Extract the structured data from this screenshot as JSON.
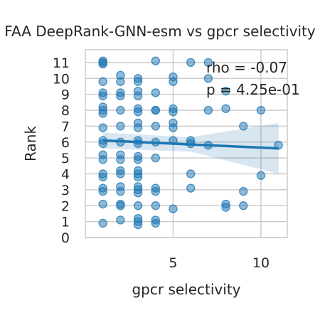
{
  "chart_data": {
    "type": "scatter",
    "title": "FAA DeepRank-GNN-esm vs gpcr selectivity",
    "xlabel": "gpcr selectivity",
    "ylabel": "Rank",
    "xlim": [
      0.0,
      11.5
    ],
    "ylim": [
      0,
      11.8
    ],
    "xticks": [
      5,
      10
    ],
    "yticks": [
      0,
      1,
      2,
      3,
      4,
      5,
      6,
      7,
      8,
      9,
      10,
      11
    ],
    "grid": true,
    "annotations": [
      "rho = -0.07",
      "p = 4.25e-01"
    ],
    "point_color": "#1f77b4",
    "line_color": "#1f77b4",
    "band_color": "#1f77b4",
    "regression": {
      "x": [
        1,
        11
      ],
      "y": [
        6.1,
        5.6
      ]
    },
    "ci_band": {
      "x": [
        1,
        6,
        11
      ],
      "lower": [
        5.6,
        5.4,
        4.0
      ],
      "upper": [
        6.6,
        6.3,
        7.2
      ]
    },
    "points": [
      {
        "x": 1,
        "y": 11.1
      },
      {
        "x": 1,
        "y": 10.9
      },
      {
        "x": 1,
        "y": 11.0
      },
      {
        "x": 1,
        "y": 9.8
      },
      {
        "x": 1,
        "y": 9.1
      },
      {
        "x": 1,
        "y": 8.9
      },
      {
        "x": 1,
        "y": 8.2
      },
      {
        "x": 1,
        "y": 8.0
      },
      {
        "x": 1,
        "y": 7.8
      },
      {
        "x": 1,
        "y": 6.9
      },
      {
        "x": 1,
        "y": 6.1
      },
      {
        "x": 1,
        "y": 5.9
      },
      {
        "x": 1,
        "y": 5.2
      },
      {
        "x": 1,
        "y": 4.9
      },
      {
        "x": 1,
        "y": 4.0
      },
      {
        "x": 1,
        "y": 3.8
      },
      {
        "x": 1,
        "y": 3.1
      },
      {
        "x": 1,
        "y": 2.9
      },
      {
        "x": 1,
        "y": 2.1
      },
      {
        "x": 1,
        "y": 0.9
      },
      {
        "x": 2,
        "y": 10.2
      },
      {
        "x": 2,
        "y": 9.8
      },
      {
        "x": 2,
        "y": 9.1
      },
      {
        "x": 2,
        "y": 8.9
      },
      {
        "x": 2,
        "y": 8.0
      },
      {
        "x": 2,
        "y": 7.0
      },
      {
        "x": 2,
        "y": 6.0
      },
      {
        "x": 2,
        "y": 5.2
      },
      {
        "x": 2,
        "y": 4.9
      },
      {
        "x": 2,
        "y": 4.2
      },
      {
        "x": 2,
        "y": 4.0
      },
      {
        "x": 2,
        "y": 3.2
      },
      {
        "x": 2,
        "y": 2.9
      },
      {
        "x": 2,
        "y": 2.1
      },
      {
        "x": 2,
        "y": 2.0
      },
      {
        "x": 2,
        "y": 1.1
      },
      {
        "x": 3,
        "y": 10.0
      },
      {
        "x": 3,
        "y": 9.8
      },
      {
        "x": 3,
        "y": 9.2
      },
      {
        "x": 3,
        "y": 8.9
      },
      {
        "x": 3,
        "y": 8.1
      },
      {
        "x": 3,
        "y": 7.9
      },
      {
        "x": 3,
        "y": 7.2
      },
      {
        "x": 3,
        "y": 6.9
      },
      {
        "x": 3,
        "y": 6.1
      },
      {
        "x": 3,
        "y": 5.9
      },
      {
        "x": 3,
        "y": 5.1
      },
      {
        "x": 3,
        "y": 4.9
      },
      {
        "x": 3,
        "y": 4.2
      },
      {
        "x": 3,
        "y": 4.0
      },
      {
        "x": 3,
        "y": 3.8
      },
      {
        "x": 3,
        "y": 3.2
      },
      {
        "x": 3,
        "y": 3.0
      },
      {
        "x": 3,
        "y": 2.8
      },
      {
        "x": 3,
        "y": 2.0
      },
      {
        "x": 3,
        "y": 1.2
      },
      {
        "x": 3,
        "y": 1.0
      },
      {
        "x": 3,
        "y": 0.8
      },
      {
        "x": 4,
        "y": 11.1
      },
      {
        "x": 4,
        "y": 9.1
      },
      {
        "x": 4,
        "y": 8.0
      },
      {
        "x": 4,
        "y": 8.0
      },
      {
        "x": 4,
        "y": 7.0
      },
      {
        "x": 4,
        "y": 6.0
      },
      {
        "x": 4,
        "y": 5.0
      },
      {
        "x": 4,
        "y": 3.1
      },
      {
        "x": 4,
        "y": 2.9
      },
      {
        "x": 4,
        "y": 2.0
      },
      {
        "x": 4,
        "y": 1.1
      },
      {
        "x": 4,
        "y": 0.9
      },
      {
        "x": 5,
        "y": 10.1
      },
      {
        "x": 5,
        "y": 9.8
      },
      {
        "x": 5,
        "y": 8.1
      },
      {
        "x": 5,
        "y": 7.9
      },
      {
        "x": 5,
        "y": 7.2
      },
      {
        "x": 5,
        "y": 6.9
      },
      {
        "x": 5,
        "y": 6.1
      },
      {
        "x": 5,
        "y": 1.8
      },
      {
        "x": 6,
        "y": 11.0
      },
      {
        "x": 6,
        "y": 6.1
      },
      {
        "x": 6,
        "y": 5.9
      },
      {
        "x": 6,
        "y": 4.0
      },
      {
        "x": 6,
        "y": 3.1
      },
      {
        "x": 7,
        "y": 11.0
      },
      {
        "x": 7,
        "y": 10.0
      },
      {
        "x": 7,
        "y": 8.0
      },
      {
        "x": 7,
        "y": 5.8
      },
      {
        "x": 8,
        "y": 9.2
      },
      {
        "x": 8,
        "y": 8.1
      },
      {
        "x": 8,
        "y": 2.1
      },
      {
        "x": 8,
        "y": 1.9
      },
      {
        "x": 9,
        "y": 7.0
      },
      {
        "x": 9,
        "y": 2.9
      },
      {
        "x": 9,
        "y": 2.0
      },
      {
        "x": 10,
        "y": 8.0
      },
      {
        "x": 10,
        "y": 3.9
      },
      {
        "x": 11,
        "y": 5.8
      }
    ]
  }
}
